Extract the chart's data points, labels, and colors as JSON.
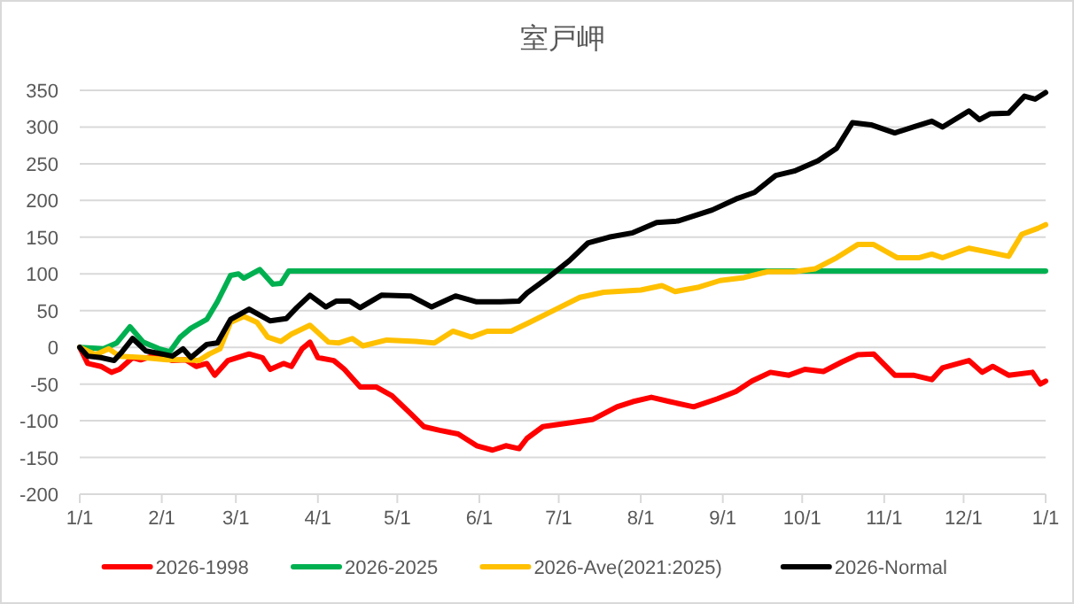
{
  "chart_data": {
    "type": "line",
    "title": "室戸岬",
    "xlim": [
      "2026-01-01",
      "2027-01-01"
    ],
    "xticks": [
      {
        "value": "2026-01-01",
        "label": "1/1"
      },
      {
        "value": "2026-02-01",
        "label": "2/1"
      },
      {
        "value": "2026-03-01",
        "label": "3/1"
      },
      {
        "value": "2026-04-01",
        "label": "4/1"
      },
      {
        "value": "2026-05-01",
        "label": "5/1"
      },
      {
        "value": "2026-06-01",
        "label": "6/1"
      },
      {
        "value": "2026-07-01",
        "label": "7/1"
      },
      {
        "value": "2026-08-01",
        "label": "8/1"
      },
      {
        "value": "2026-09-01",
        "label": "9/1"
      },
      {
        "value": "2026-10-01",
        "label": "10/1"
      },
      {
        "value": "2026-11-01",
        "label": "11/1"
      },
      {
        "value": "2026-12-01",
        "label": "12/1"
      },
      {
        "value": "2027-01-01",
        "label": "1/1"
      }
    ],
    "ylim": [
      -200,
      350
    ],
    "yticks": [
      -200,
      -150,
      -100,
      -50,
      0,
      50,
      100,
      150,
      200,
      250,
      300,
      350
    ],
    "grid": "y",
    "legend": "bottom",
    "marker": "none",
    "line_style": "solid",
    "series": [
      {
        "name": "2026-1998",
        "color": "#ff0000",
        "x": [
          "2026-01-01",
          "2026-01-04",
          "2026-01-09",
          "2026-01-13",
          "2026-01-16",
          "2026-01-21",
          "2026-01-24",
          "2026-01-30",
          "2026-02-05",
          "2026-02-10",
          "2026-02-14",
          "2026-02-18",
          "2026-02-21",
          "2026-02-26",
          "2026-03-06",
          "2026-03-11",
          "2026-03-14",
          "2026-03-19",
          "2026-03-22",
          "2026-03-26",
          "2026-03-29",
          "2026-04-01",
          "2026-04-07",
          "2026-04-11",
          "2026-04-17",
          "2026-04-23",
          "2026-04-29",
          "2026-05-06",
          "2026-05-11",
          "2026-05-17",
          "2026-05-24",
          "2026-05-31",
          "2026-06-06",
          "2026-06-11",
          "2026-06-16",
          "2026-06-19",
          "2026-06-25",
          "2026-07-05",
          "2026-07-14",
          "2026-07-23",
          "2026-07-29",
          "2026-08-05",
          "2026-08-12",
          "2026-08-21",
          "2026-08-30",
          "2026-09-06",
          "2026-09-12",
          "2026-09-19",
          "2026-09-26",
          "2026-10-02",
          "2026-10-09",
          "2026-10-16",
          "2026-10-22",
          "2026-10-28",
          "2026-11-05",
          "2026-11-12",
          "2026-11-19",
          "2026-11-23",
          "2026-12-03",
          "2026-12-08",
          "2026-12-12",
          "2026-12-18",
          "2026-12-27",
          "2026-12-30",
          "2027-01-01"
        ],
        "values": [
          0,
          -22,
          -26,
          -34,
          -30,
          -14,
          -17,
          -10,
          -18,
          -17,
          -26,
          -22,
          -38,
          -18,
          -9,
          -14,
          -30,
          -22,
          -26,
          -2,
          7,
          -14,
          -18,
          -30,
          -54,
          -54,
          -66,
          -90,
          -108,
          -113,
          -118,
          -134,
          -140,
          -134,
          -138,
          -124,
          -108,
          -103,
          -98,
          -81,
          -74,
          -68,
          -74,
          -81,
          -70,
          -60,
          -46,
          -34,
          -38,
          -30,
          -33,
          -20,
          -10,
          -9,
          -38,
          -38,
          -44,
          -28,
          -18,
          -34,
          -26,
          -38,
          -34,
          -50,
          -46
        ]
      },
      {
        "name": "2026-2025",
        "color": "#00b050",
        "x": [
          "2026-01-01",
          "2026-01-10",
          "2026-01-15",
          "2026-01-20",
          "2026-01-25",
          "2026-01-31",
          "2026-02-04",
          "2026-02-08",
          "2026-02-12",
          "2026-02-18",
          "2026-02-22",
          "2026-02-27",
          "2026-03-02",
          "2026-03-04",
          "2026-03-10",
          "2026-03-15",
          "2026-03-18",
          "2026-03-21",
          "2027-01-01"
        ],
        "values": [
          0,
          -2,
          6,
          28,
          7,
          -2,
          -6,
          14,
          26,
          38,
          62,
          98,
          100,
          94,
          106,
          86,
          87,
          104,
          104
        ]
      },
      {
        "name": "2026-Ave(2021:2025)",
        "color": "#ffc000",
        "x": [
          "2026-01-01",
          "2026-01-07",
          "2026-01-12",
          "2026-01-16",
          "2026-01-25",
          "2026-02-03",
          "2026-02-10",
          "2026-02-15",
          "2026-02-19",
          "2026-02-23",
          "2026-02-27",
          "2026-03-04",
          "2026-03-09",
          "2026-03-13",
          "2026-03-18",
          "2026-03-22",
          "2026-03-29",
          "2026-04-05",
          "2026-04-09",
          "2026-04-14",
          "2026-04-18",
          "2026-04-27",
          "2026-05-08",
          "2026-05-15",
          "2026-05-22",
          "2026-05-29",
          "2026-06-04",
          "2026-06-13",
          "2026-06-20",
          "2026-06-30",
          "2026-07-09",
          "2026-07-18",
          "2026-08-01",
          "2026-08-09",
          "2026-08-14",
          "2026-08-23",
          "2026-08-31",
          "2026-09-09",
          "2026-09-18",
          "2026-09-28",
          "2026-10-06",
          "2026-10-14",
          "2026-10-22",
          "2026-10-28",
          "2026-11-06",
          "2026-11-14",
          "2026-11-19",
          "2026-11-23",
          "2026-12-03",
          "2026-12-10",
          "2026-12-18",
          "2026-12-23",
          "2026-12-29",
          "2027-01-01"
        ],
        "values": [
          0,
          -10,
          -2,
          -12,
          -14,
          -17,
          -17,
          -18,
          -9,
          -2,
          34,
          42,
          34,
          14,
          8,
          18,
          30,
          7,
          6,
          12,
          2,
          10,
          8,
          6,
          22,
          14,
          22,
          22,
          34,
          52,
          68,
          75,
          78,
          84,
          76,
          82,
          91,
          95,
          103,
          103,
          107,
          122,
          140,
          140,
          122,
          122,
          127,
          122,
          135,
          130,
          124,
          154,
          162,
          167
        ]
      },
      {
        "name": "2026-Normal",
        "color": "#000000",
        "x": [
          "2026-01-01",
          "2026-01-04",
          "2026-01-09",
          "2026-01-14",
          "2026-01-17",
          "2026-01-21",
          "2026-01-26",
          "2026-02-01",
          "2026-02-05",
          "2026-02-09",
          "2026-02-12",
          "2026-02-18",
          "2026-02-22",
          "2026-02-27",
          "2026-03-06",
          "2026-03-14",
          "2026-03-20",
          "2026-03-24",
          "2026-03-29",
          "2026-04-04",
          "2026-04-08",
          "2026-04-13",
          "2026-04-17",
          "2026-04-25",
          "2026-05-06",
          "2026-05-14",
          "2026-05-23",
          "2026-05-31",
          "2026-06-09",
          "2026-06-16",
          "2026-06-19",
          "2026-06-27",
          "2026-07-05",
          "2026-07-12",
          "2026-07-20",
          "2026-07-29",
          "2026-08-07",
          "2026-08-15",
          "2026-08-28",
          "2026-09-06",
          "2026-09-13",
          "2026-09-21",
          "2026-09-28",
          "2026-10-07",
          "2026-10-14",
          "2026-10-20",
          "2026-10-27",
          "2026-11-05",
          "2026-11-12",
          "2026-11-19",
          "2026-11-23",
          "2026-12-03",
          "2026-12-07",
          "2026-12-11",
          "2026-12-18",
          "2026-12-24",
          "2026-12-28",
          "2027-01-01"
        ],
        "values": [
          0,
          -12,
          -14,
          -18,
          -6,
          12,
          -5,
          -9,
          -12,
          -2,
          -14,
          4,
          6,
          38,
          52,
          36,
          39,
          54,
          71,
          55,
          63,
          63,
          54,
          71,
          70,
          55,
          70,
          62,
          62,
          63,
          74,
          95,
          118,
          142,
          150,
          156,
          170,
          172,
          187,
          202,
          211,
          234,
          240,
          254,
          271,
          306,
          303,
          292,
          300,
          308,
          300,
          322,
          310,
          318,
          319,
          342,
          338,
          347
        ]
      }
    ]
  }
}
